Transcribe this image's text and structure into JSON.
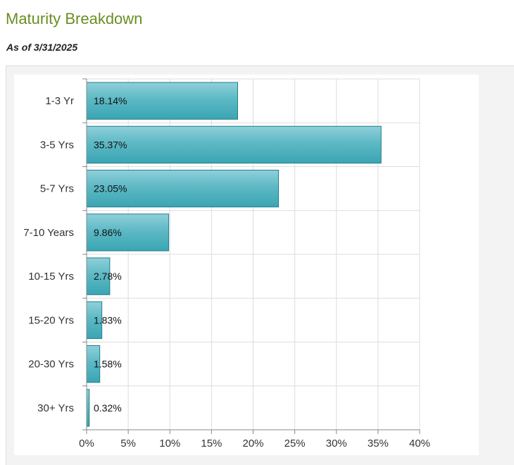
{
  "header": {
    "title": "Maturity Breakdown",
    "as_of": "As of 3/31/2025"
  },
  "colors": {
    "title": "#6b8e23",
    "bar_top": "#8fd0da",
    "bar_bottom": "#3aa5b2",
    "bar_stroke": "#1f7f8c",
    "grid": "#dddddd"
  },
  "chart_data": {
    "type": "bar",
    "orientation": "horizontal",
    "title": "",
    "xlabel": "",
    "ylabel": "",
    "categories": [
      "1-3 Yr",
      "3-5 Yrs",
      "5-7 Yrs",
      "7-10 Years",
      "10-15 Yrs",
      "15-20 Yrs",
      "20-30 Yrs",
      "30+ Yrs"
    ],
    "values": [
      18.14,
      35.37,
      23.05,
      9.86,
      2.78,
      1.83,
      1.58,
      0.32
    ],
    "data_labels": [
      "18.14%",
      "35.37%",
      "23.05%",
      "9.86%",
      "2.78%",
      "1.83%",
      "1.58%",
      "0.32%"
    ],
    "xlim": [
      0,
      40
    ],
    "xticks": [
      0,
      5,
      10,
      15,
      20,
      25,
      30,
      35,
      40
    ],
    "xtick_labels": [
      "0%",
      "5%",
      "10%",
      "15%",
      "20%",
      "25%",
      "30%",
      "35%",
      "40%"
    ],
    "grid": true,
    "legend": "none"
  }
}
